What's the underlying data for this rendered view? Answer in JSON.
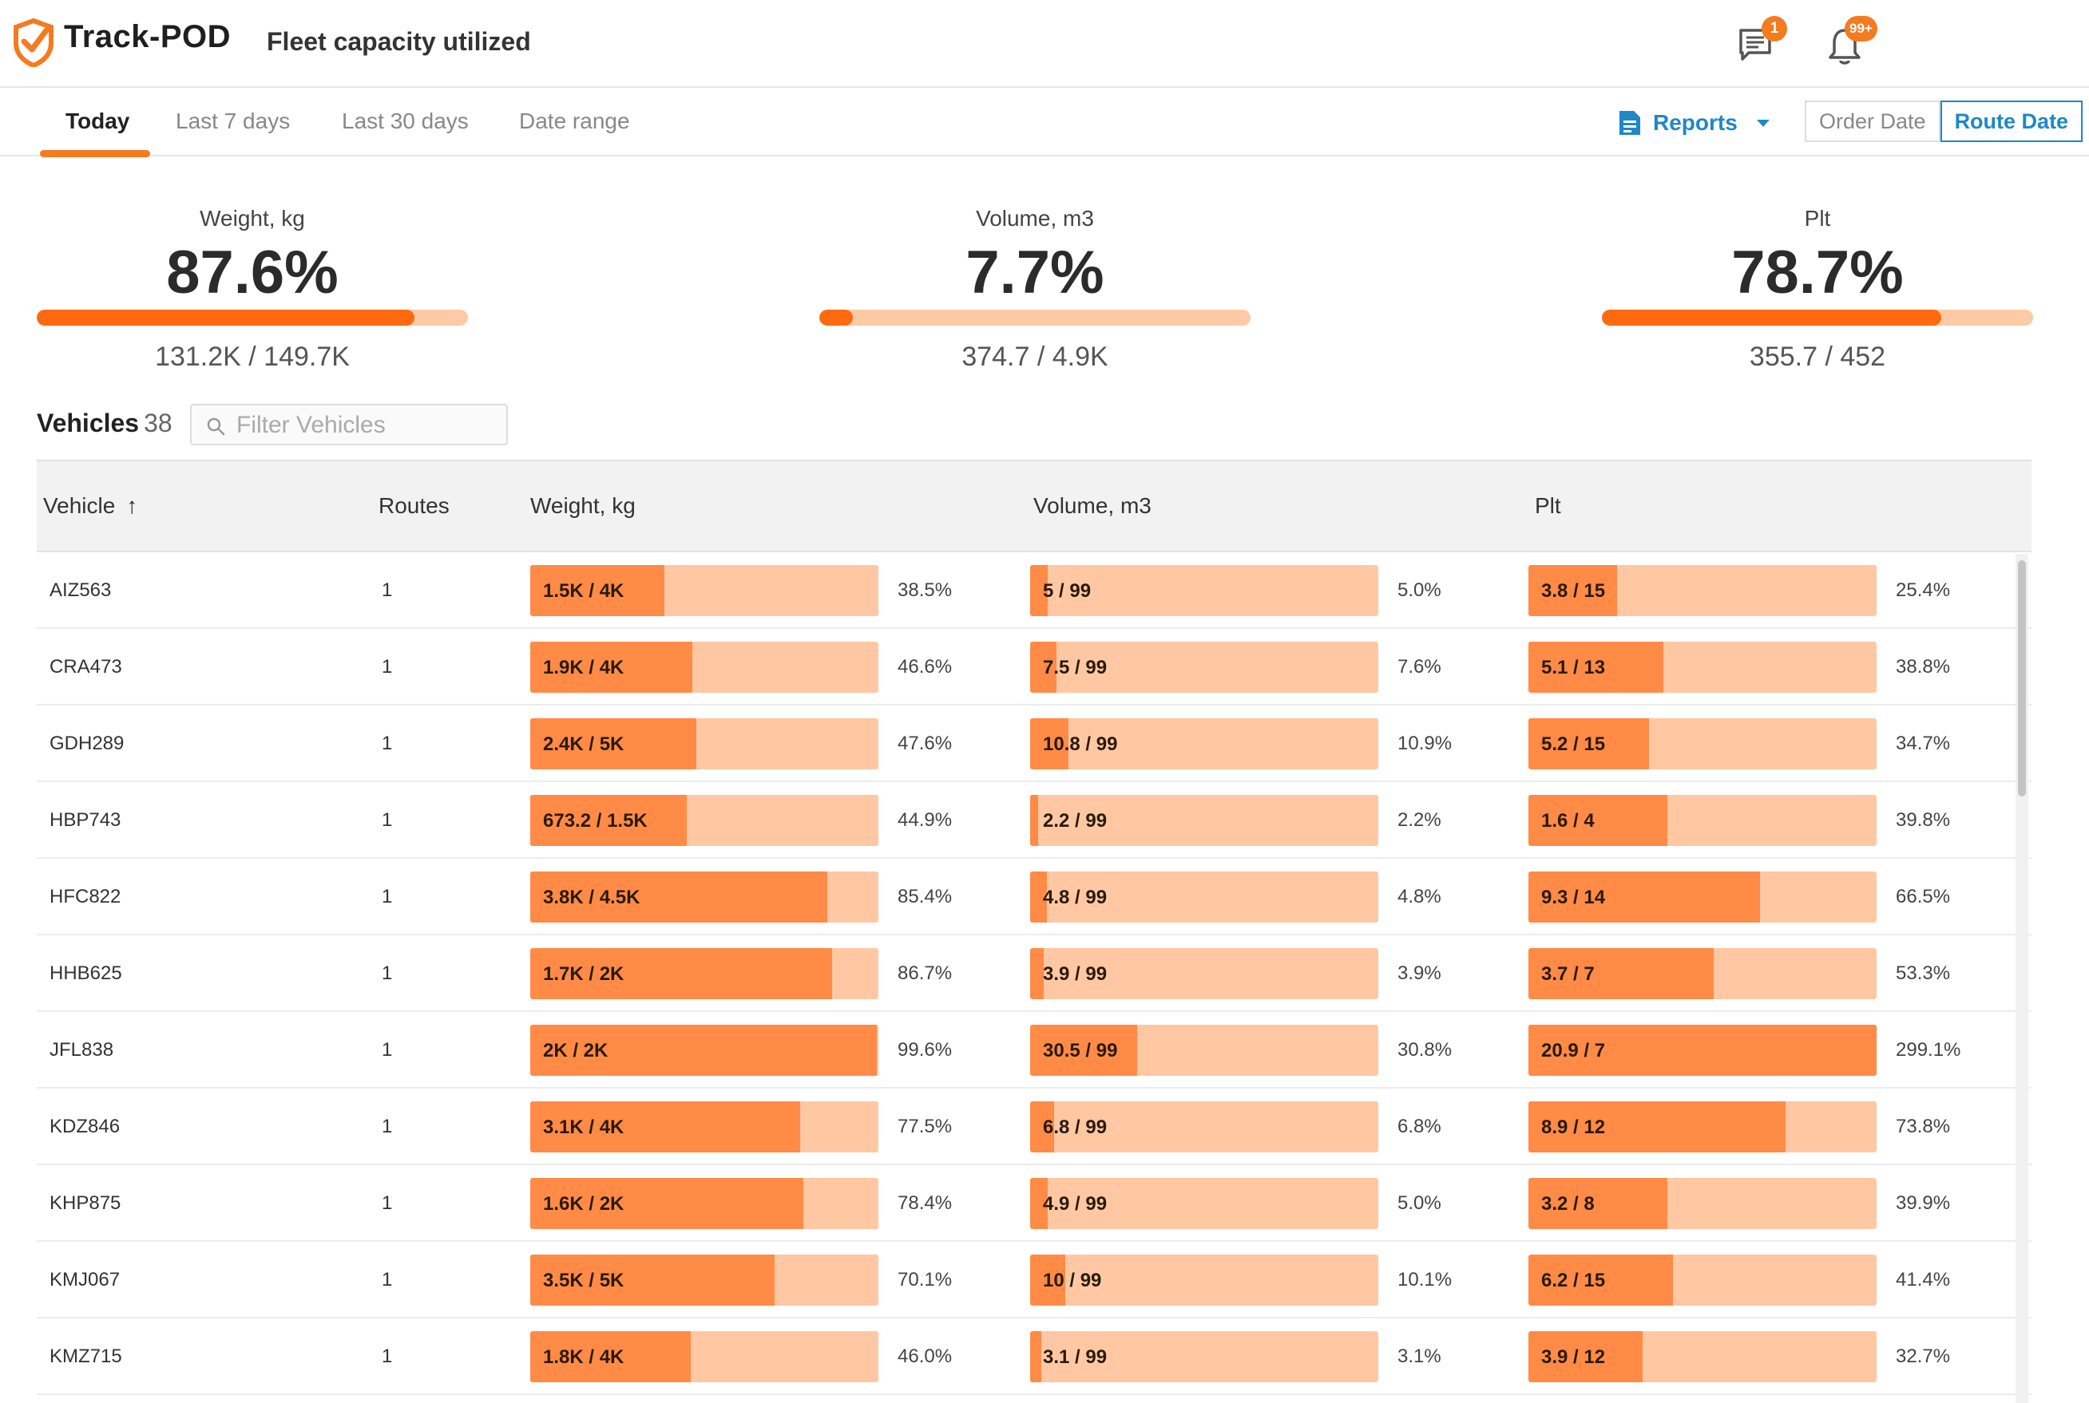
{
  "header": {
    "brand": "Track-POD",
    "title": "Fleet capacity utilized",
    "chat_badge": "1",
    "bell_badge": "99+"
  },
  "tabs": [
    {
      "label": "Today",
      "active": true
    },
    {
      "label": "Last 7 days",
      "active": false
    },
    {
      "label": "Last 30 days",
      "active": false
    },
    {
      "label": "Date range",
      "active": false
    }
  ],
  "reports_label": "Reports",
  "date_toggle": {
    "order": "Order Date",
    "route": "Route Date",
    "selected": "route"
  },
  "summary": [
    {
      "label": "Weight, kg",
      "pct": "87.6%",
      "fraction": 0.876,
      "ratio": "131.2K / 149.7K"
    },
    {
      "label": "Volume, m3",
      "pct": "7.7%",
      "fraction": 0.077,
      "ratio": "374.7 / 4.9K"
    },
    {
      "label": "Plt",
      "pct": "78.7%",
      "fraction": 0.787,
      "ratio": "355.7 / 452"
    }
  ],
  "vehicles": {
    "label": "Vehicles",
    "count": "38",
    "filter_placeholder": "Filter Vehicles"
  },
  "columns": {
    "vehicle": "Vehicle",
    "routes": "Routes",
    "weight": "Weight, kg",
    "volume": "Volume, m3",
    "plt": "Plt"
  },
  "rows": [
    {
      "vehicle": "AIZ563",
      "routes": "1",
      "weight": {
        "text": "1.5K / 4K",
        "pct": "38.5%",
        "fraction": 0.385
      },
      "volume": {
        "text": "5 / 99",
        "pct": "5.0%",
        "fraction": 0.05
      },
      "plt": {
        "text": "3.8 / 15",
        "pct": "25.4%",
        "fraction": 0.254
      }
    },
    {
      "vehicle": "CRA473",
      "routes": "1",
      "weight": {
        "text": "1.9K / 4K",
        "pct": "46.6%",
        "fraction": 0.466
      },
      "volume": {
        "text": "7.5 / 99",
        "pct": "7.6%",
        "fraction": 0.076
      },
      "plt": {
        "text": "5.1 / 13",
        "pct": "38.8%",
        "fraction": 0.388
      }
    },
    {
      "vehicle": "GDH289",
      "routes": "1",
      "weight": {
        "text": "2.4K / 5K",
        "pct": "47.6%",
        "fraction": 0.476
      },
      "volume": {
        "text": "10.8 / 99",
        "pct": "10.9%",
        "fraction": 0.109
      },
      "plt": {
        "text": "5.2 / 15",
        "pct": "34.7%",
        "fraction": 0.347
      }
    },
    {
      "vehicle": "HBP743",
      "routes": "1",
      "weight": {
        "text": "673.2 / 1.5K",
        "pct": "44.9%",
        "fraction": 0.449
      },
      "volume": {
        "text": "2.2 / 99",
        "pct": "2.2%",
        "fraction": 0.022
      },
      "plt": {
        "text": "1.6 / 4",
        "pct": "39.8%",
        "fraction": 0.398
      }
    },
    {
      "vehicle": "HFC822",
      "routes": "1",
      "weight": {
        "text": "3.8K / 4.5K",
        "pct": "85.4%",
        "fraction": 0.854
      },
      "volume": {
        "text": "4.8 / 99",
        "pct": "4.8%",
        "fraction": 0.048
      },
      "plt": {
        "text": "9.3 / 14",
        "pct": "66.5%",
        "fraction": 0.665
      }
    },
    {
      "vehicle": "HHB625",
      "routes": "1",
      "weight": {
        "text": "1.7K / 2K",
        "pct": "86.7%",
        "fraction": 0.867
      },
      "volume": {
        "text": "3.9 / 99",
        "pct": "3.9%",
        "fraction": 0.039
      },
      "plt": {
        "text": "3.7 / 7",
        "pct": "53.3%",
        "fraction": 0.533
      }
    },
    {
      "vehicle": "JFL838",
      "routes": "1",
      "weight": {
        "text": "2K / 2K",
        "pct": "99.6%",
        "fraction": 0.996
      },
      "volume": {
        "text": "30.5 / 99",
        "pct": "30.8%",
        "fraction": 0.308
      },
      "plt": {
        "text": "20.9 / 7",
        "pct": "299.1%",
        "fraction": 1.0
      }
    },
    {
      "vehicle": "KDZ846",
      "routes": "1",
      "weight": {
        "text": "3.1K / 4K",
        "pct": "77.5%",
        "fraction": 0.775
      },
      "volume": {
        "text": "6.8 / 99",
        "pct": "6.8%",
        "fraction": 0.068
      },
      "plt": {
        "text": "8.9 / 12",
        "pct": "73.8%",
        "fraction": 0.738
      }
    },
    {
      "vehicle": "KHP875",
      "routes": "1",
      "weight": {
        "text": "1.6K / 2K",
        "pct": "78.4%",
        "fraction": 0.784
      },
      "volume": {
        "text": "4.9 / 99",
        "pct": "5.0%",
        "fraction": 0.05
      },
      "plt": {
        "text": "3.2 / 8",
        "pct": "39.9%",
        "fraction": 0.399
      }
    },
    {
      "vehicle": "KMJ067",
      "routes": "1",
      "weight": {
        "text": "3.5K / 5K",
        "pct": "70.1%",
        "fraction": 0.701
      },
      "volume": {
        "text": "10 / 99",
        "pct": "10.1%",
        "fraction": 0.101
      },
      "plt": {
        "text": "6.2 / 15",
        "pct": "41.4%",
        "fraction": 0.414
      }
    },
    {
      "vehicle": "KMZ715",
      "routes": "1",
      "weight": {
        "text": "1.8K / 4K",
        "pct": "46.0%",
        "fraction": 0.46
      },
      "volume": {
        "text": "3.1 / 99",
        "pct": "3.1%",
        "fraction": 0.031
      },
      "plt": {
        "text": "3.9 / 12",
        "pct": "32.7%",
        "fraction": 0.327
      }
    }
  ],
  "colors": {
    "accent": "#f47b20",
    "link": "#1e88c8",
    "bar_fill": "#ff8b47",
    "bar_track": "#ffc8a3"
  }
}
